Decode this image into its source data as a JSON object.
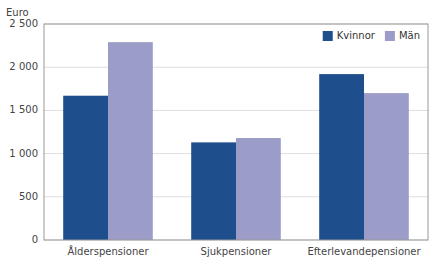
{
  "chart_data": {
    "type": "bar",
    "ylabel": "Euro",
    "categories": [
      "Ålderspensioner",
      "Sjukpensioner",
      "Efterlevandepensioner"
    ],
    "series": [
      {
        "name": "Kvinnor",
        "color": "#1f4e8c",
        "values": [
          1670,
          1130,
          1920
        ]
      },
      {
        "name": "Män",
        "color": "#9b9cc8",
        "values": [
          2290,
          1180,
          1700
        ]
      }
    ],
    "ylim": [
      0,
      2500
    ],
    "yticks": [
      0,
      500,
      {
        "value": 1000,
        "label": "1 000"
      },
      {
        "value": 1500,
        "label": "1 500"
      },
      {
        "value": 2000,
        "label": "2 000"
      },
      {
        "value": 2500,
        "label": "2 500"
      }
    ],
    "grid": true,
    "legend": "upper right"
  }
}
